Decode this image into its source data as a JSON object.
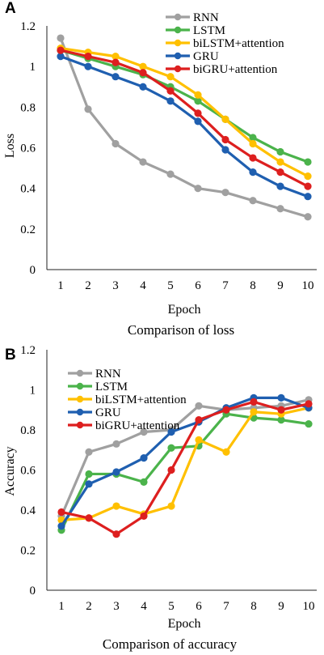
{
  "chart_data": [
    {
      "panel_label": "A",
      "type": "line",
      "caption": "Comparison of loss",
      "xlabel": "Epoch",
      "ylabel": "Loss",
      "ylim": [
        0,
        1.2
      ],
      "yticks": [
        "0",
        "0.2",
        "0.4",
        "0.6",
        "0.8",
        "1",
        "1.2"
      ],
      "x": [
        "1",
        "2",
        "3",
        "4",
        "5",
        "6",
        "7",
        "8",
        "9",
        "10"
      ],
      "legend_position": "top-right",
      "grid": false,
      "series": [
        {
          "name": "RNN",
          "color": "#a0a0a0",
          "values": [
            1.14,
            0.79,
            0.62,
            0.53,
            0.47,
            0.4,
            0.38,
            0.34,
            0.3,
            0.26
          ]
        },
        {
          "name": "LSTM",
          "color": "#4bb34b",
          "values": [
            1.08,
            1.04,
            1.0,
            0.96,
            0.9,
            0.83,
            0.74,
            0.65,
            0.58,
            0.53
          ]
        },
        {
          "name": "biLSTM+attention",
          "color": "#ffc000",
          "values": [
            1.09,
            1.07,
            1.05,
            1.0,
            0.95,
            0.86,
            0.74,
            0.62,
            0.53,
            0.46
          ]
        },
        {
          "name": "GRU",
          "color": "#1f5fb0",
          "values": [
            1.05,
            1.0,
            0.95,
            0.9,
            0.83,
            0.73,
            0.59,
            0.48,
            0.41,
            0.36
          ]
        },
        {
          "name": "biGRU+attention",
          "color": "#dd1f1f",
          "values": [
            1.08,
            1.05,
            1.02,
            0.97,
            0.88,
            0.77,
            0.64,
            0.55,
            0.48,
            0.41
          ]
        }
      ]
    },
    {
      "panel_label": "B",
      "type": "line",
      "caption": "Comparison of accuracy",
      "xlabel": "Epoch",
      "ylabel": "Accuracy",
      "ylim": [
        0,
        1.2
      ],
      "yticks": [
        "0",
        "0.2",
        "0.4",
        "0.6",
        "0.8",
        "1",
        "1.2"
      ],
      "x": [
        "1",
        "2",
        "3",
        "4",
        "5",
        "6",
        "7",
        "8",
        "9",
        "10"
      ],
      "legend_position": "top-left",
      "grid": false,
      "series": [
        {
          "name": "RNN",
          "color": "#a0a0a0",
          "values": [
            0.37,
            0.69,
            0.73,
            0.79,
            0.8,
            0.92,
            0.9,
            0.91,
            0.92,
            0.95
          ]
        },
        {
          "name": "LSTM",
          "color": "#4bb34b",
          "values": [
            0.3,
            0.58,
            0.58,
            0.54,
            0.71,
            0.72,
            0.88,
            0.86,
            0.85,
            0.83
          ]
        },
        {
          "name": "biLSTM+attention",
          "color": "#ffc000",
          "values": [
            0.35,
            0.36,
            0.42,
            0.38,
            0.42,
            0.75,
            0.69,
            0.89,
            0.88,
            0.91
          ]
        },
        {
          "name": "GRU",
          "color": "#1f5fb0",
          "values": [
            0.32,
            0.53,
            0.59,
            0.66,
            0.79,
            0.84,
            0.91,
            0.96,
            0.96,
            0.91
          ]
        },
        {
          "name": "biGRU+attention",
          "color": "#dd1f1f",
          "values": [
            0.39,
            0.36,
            0.28,
            0.37,
            0.6,
            0.85,
            0.9,
            0.94,
            0.9,
            0.93
          ]
        }
      ]
    }
  ]
}
